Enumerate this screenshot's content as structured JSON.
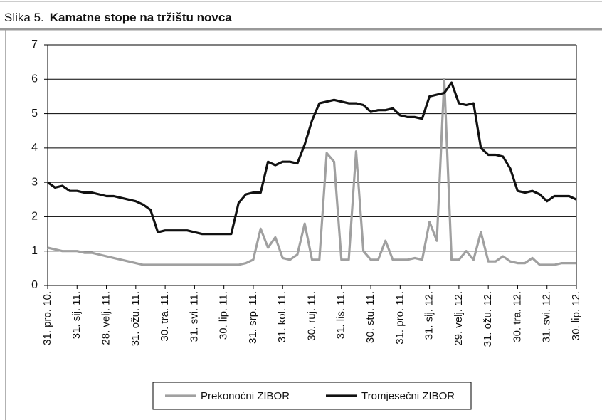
{
  "chart_data": {
    "type": "line",
    "label": "Slika 5.",
    "title": "Kamatne stope na tržištu novca",
    "categories": [
      "31. pro. 10.",
      null,
      null,
      null,
      "31. sij. 11.",
      null,
      null,
      null,
      "28. velj. 11.",
      null,
      null,
      null,
      "31. ožu. 11.",
      null,
      null,
      null,
      "30. tra. 11.",
      null,
      null,
      null,
      "31. svi. 11.",
      null,
      null,
      null,
      "30. lip. 11.",
      null,
      null,
      null,
      "31. srp. 11.",
      null,
      null,
      null,
      "31. kol. 11.",
      null,
      null,
      null,
      "30. ruj. 11.",
      null,
      null,
      null,
      "31. lis. 11.",
      null,
      null,
      null,
      "30. stu. 11.",
      null,
      null,
      null,
      "31. pro. 11.",
      null,
      null,
      null,
      "31. sij. 12.",
      null,
      null,
      null,
      "29. velj. 12.",
      null,
      null,
      null,
      "31. ožu. 12.",
      null,
      null,
      null,
      "30. tra. 12.",
      null,
      null,
      null,
      "31. svi. 12.",
      null,
      null,
      null,
      "30. lip. 12."
    ],
    "series": [
      {
        "name": "Prekonoćni ZIBOR",
        "color": "#a0a0a0",
        "values": [
          1.1,
          1.05,
          1.0,
          1.0,
          1.0,
          0.95,
          0.95,
          0.9,
          0.85,
          0.8,
          0.75,
          0.7,
          0.65,
          0.6,
          0.6,
          0.6,
          0.6,
          0.6,
          0.6,
          0.6,
          0.6,
          0.6,
          0.6,
          0.6,
          0.6,
          0.6,
          0.6,
          0.65,
          0.75,
          1.65,
          1.1,
          1.4,
          0.8,
          0.75,
          0.9,
          1.8,
          0.75,
          0.75,
          3.85,
          3.6,
          0.75,
          0.75,
          3.9,
          1.0,
          0.75,
          0.75,
          1.3,
          0.75,
          0.75,
          0.75,
          0.8,
          0.75,
          1.85,
          1.3,
          6.0,
          0.75,
          0.75,
          1.0,
          0.75,
          1.55,
          0.7,
          0.7,
          0.85,
          0.7,
          0.65,
          0.65,
          0.8,
          0.6,
          0.6,
          0.6,
          0.65,
          0.65,
          0.65
        ]
      },
      {
        "name": "Tromjesečni ZIBOR",
        "color": "#111111",
        "values": [
          3.0,
          2.85,
          2.9,
          2.75,
          2.75,
          2.7,
          2.7,
          2.65,
          2.6,
          2.6,
          2.55,
          2.5,
          2.45,
          2.35,
          2.2,
          1.55,
          1.6,
          1.6,
          1.6,
          1.6,
          1.55,
          1.5,
          1.5,
          1.5,
          1.5,
          1.5,
          2.4,
          2.65,
          2.7,
          2.7,
          3.6,
          3.5,
          3.6,
          3.6,
          3.55,
          4.1,
          4.8,
          5.3,
          5.35,
          5.4,
          5.35,
          5.3,
          5.3,
          5.25,
          5.05,
          5.1,
          5.1,
          5.15,
          4.95,
          4.9,
          4.9,
          4.85,
          5.5,
          5.55,
          5.6,
          5.9,
          5.3,
          5.25,
          5.3,
          4.0,
          3.8,
          3.8,
          3.75,
          3.4,
          2.75,
          2.7,
          2.75,
          2.65,
          2.45,
          2.6,
          2.6,
          2.6,
          2.5
        ]
      }
    ],
    "ylim": [
      0,
      7
    ],
    "yticks": [
      0,
      1,
      2,
      3,
      4,
      5,
      6,
      7
    ],
    "grid": true,
    "legend": "bottom"
  }
}
